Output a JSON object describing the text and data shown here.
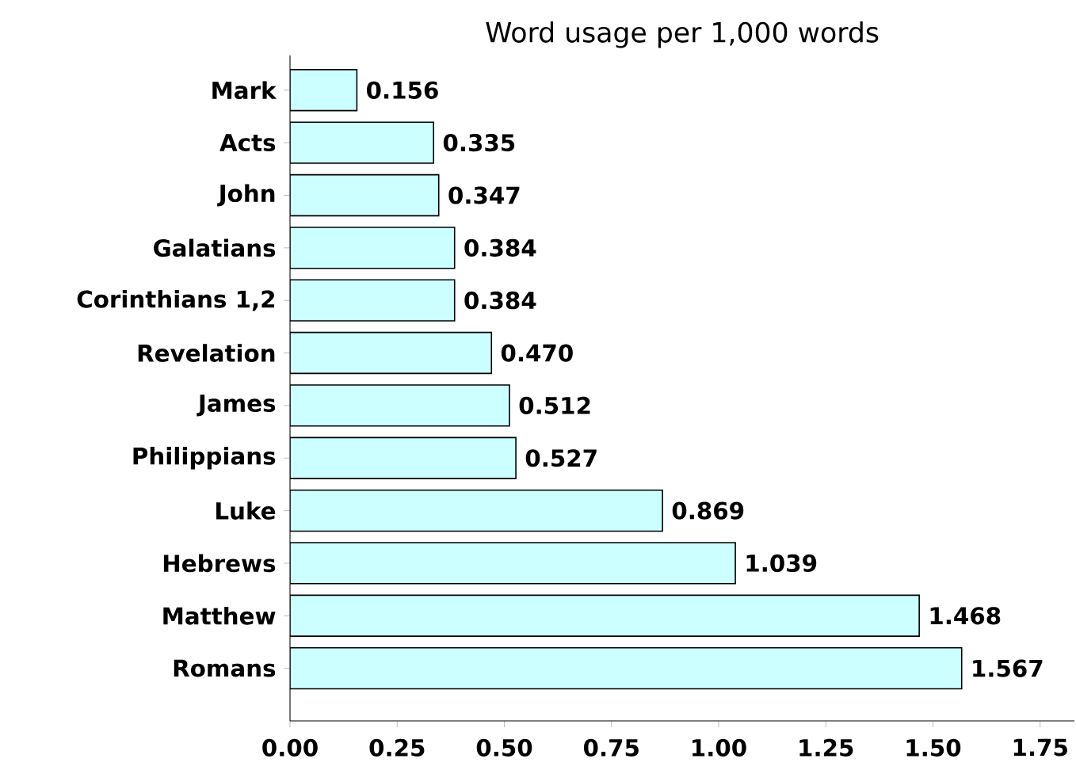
{
  "chart_data": {
    "type": "bar",
    "orientation": "horizontal",
    "title": "Word usage per 1,000 words",
    "categories": [
      "Mark",
      "Acts",
      "John",
      "Galatians",
      "Corinthians 1,2",
      "Revelation",
      "James",
      "Philippians",
      "Luke",
      "Hebrews",
      "Matthew",
      "Romans"
    ],
    "values": [
      0.156,
      0.335,
      0.347,
      0.384,
      0.384,
      0.47,
      0.512,
      0.527,
      0.869,
      1.039,
      1.468,
      1.567
    ],
    "value_labels": [
      "0.156",
      "0.335",
      "0.347",
      "0.384",
      "0.384",
      "0.470",
      "0.512",
      "0.527",
      "0.869",
      "1.039",
      "1.468",
      "1.567"
    ],
    "color": "#ccffff",
    "xlim": [
      0,
      1.83
    ],
    "xticks": [
      {
        "value": 0,
        "label": "0.00"
      },
      {
        "value": 0.25,
        "label": "0.25"
      },
      {
        "value": 0.5,
        "label": "0.50"
      },
      {
        "value": 0.75,
        "label": "0.75"
      },
      {
        "value": 1,
        "label": "1.00"
      },
      {
        "value": 1.25,
        "label": "1.25"
      },
      {
        "value": 1.5,
        "label": "1.50"
      },
      {
        "value": 1.75,
        "label": "1.75"
      }
    ],
    "grid": false
  }
}
